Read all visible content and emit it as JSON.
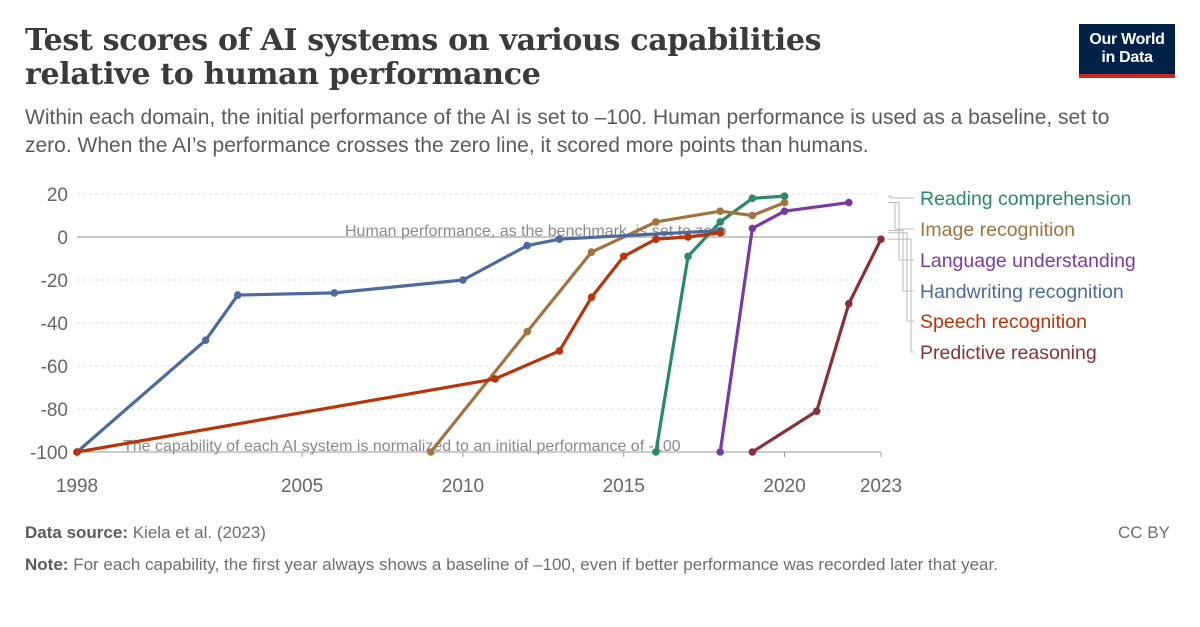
{
  "header": {
    "title": "Test scores of AI systems on various capabilities relative to human performance",
    "subtitle": "Within each domain, the initial performance of the AI is set to –100. Human performance is used as a baseline, set to zero. When the AI’s performance crosses the zero line, it scored more points than humans.",
    "logo_line1": "Our World",
    "logo_line2": "in Data"
  },
  "footer": {
    "source_label": "Data source:",
    "source_text": "Kiela et al. (2023)",
    "license": "CC BY",
    "note_label": "Note:",
    "note_text": "For each capability, the first year always shows a baseline of –100, even if better performance was recorded later that year."
  },
  "chart_data": {
    "type": "line",
    "title": "Test scores of AI systems on various capabilities relative to human performance",
    "xlim": [
      1998,
      2023
    ],
    "ylim": [
      -100,
      20
    ],
    "x_ticks": [
      1998,
      2005,
      2010,
      2015,
      2020,
      2023
    ],
    "y_ticks": [
      -100,
      -80,
      -60,
      -40,
      -20,
      0,
      20
    ],
    "grid": "horizontal dashed",
    "legend": "right, labels at line ends",
    "annotations": [
      {
        "text": "Human performance, as the benchmark, is set to zero",
        "y": 0
      },
      {
        "text": "The capability of each AI system is normalized to an initial performance of -100",
        "y": -100
      }
    ],
    "series": [
      {
        "name": "Reading comprehension",
        "color": "#2a8a68",
        "x": [
          2016,
          2017,
          2018,
          2019,
          2020
        ],
        "y": [
          -100,
          -9,
          7,
          18,
          19
        ]
      },
      {
        "name": "Image recognition",
        "color": "#a2733f",
        "x": [
          2009,
          2012,
          2014,
          2016,
          2018,
          2019,
          2020
        ],
        "y": [
          -100,
          -44,
          -7,
          7,
          12,
          10,
          16
        ]
      },
      {
        "name": "Language understanding",
        "color": "#7b3aa1",
        "x": [
          2018,
          2019,
          2020,
          2022
        ],
        "y": [
          -100,
          4,
          12,
          16
        ]
      },
      {
        "name": "Handwriting recognition",
        "color": "#4c6a9c",
        "x": [
          1998,
          2002,
          2003,
          2006,
          2010,
          2012,
          2013,
          2018
        ],
        "y": [
          -100,
          -48,
          -27,
          -26,
          -20,
          -4,
          -1,
          3
        ]
      },
      {
        "name": "Speech recognition",
        "color": "#b83409",
        "x": [
          1998,
          2011,
          2013,
          2014,
          2015,
          2016,
          2017,
          2018
        ],
        "y": [
          -100,
          -66,
          -53,
          -28,
          -9,
          -1,
          0,
          2
        ]
      },
      {
        "name": "Predictive reasoning",
        "color": "#883039",
        "x": [
          2019,
          2021,
          2022,
          2023
        ],
        "y": [
          -100,
          -81,
          -31,
          -1
        ]
      }
    ]
  }
}
